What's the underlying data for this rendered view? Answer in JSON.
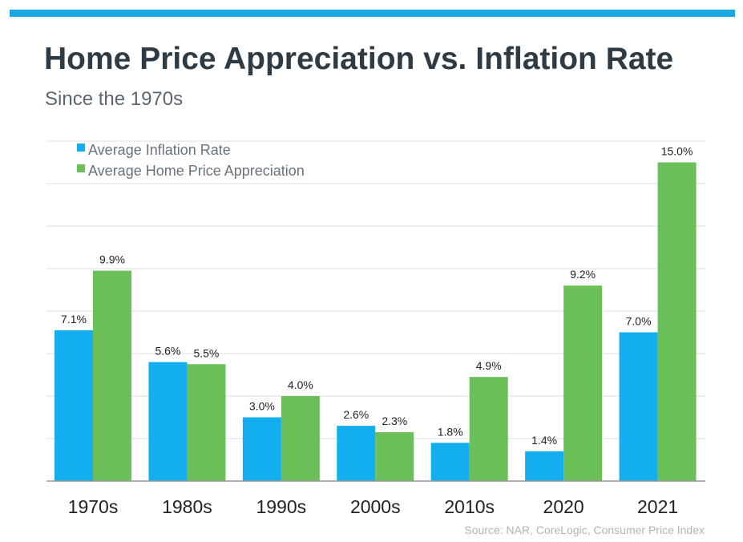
{
  "title": "Home Price Appreciation vs. Inflation Rate",
  "subtitle": "Since the 1970s",
  "source": "Source: NAR, CoreLogic, Consumer Price Index",
  "colors": {
    "accent_bar": "#1aa7e3",
    "inflation": "#12aeef",
    "appreciation": "#6bbf59"
  },
  "chart_data": {
    "type": "bar",
    "categories": [
      "1970s",
      "1980s",
      "1990s",
      "2000s",
      "2010s",
      "2020",
      "2021"
    ],
    "series": [
      {
        "name": "Average Inflation Rate",
        "values": [
          7.1,
          5.6,
          3.0,
          2.6,
          1.8,
          1.4,
          7.0
        ],
        "labels": [
          "7.1%",
          "5.6%",
          "3.0%",
          "2.6%",
          "1.8%",
          "1.4%",
          "7.0%"
        ]
      },
      {
        "name": "Average Home Price Appreciation",
        "values": [
          9.9,
          5.5,
          4.0,
          2.3,
          4.9,
          9.2,
          15.0
        ],
        "labels": [
          "9.9%",
          "5.5%",
          "4.0%",
          "2.3%",
          "4.9%",
          "9.2%",
          "15.0%"
        ]
      }
    ],
    "ylim": [
      0,
      16
    ],
    "grid": true,
    "legend_position": "top-left"
  }
}
